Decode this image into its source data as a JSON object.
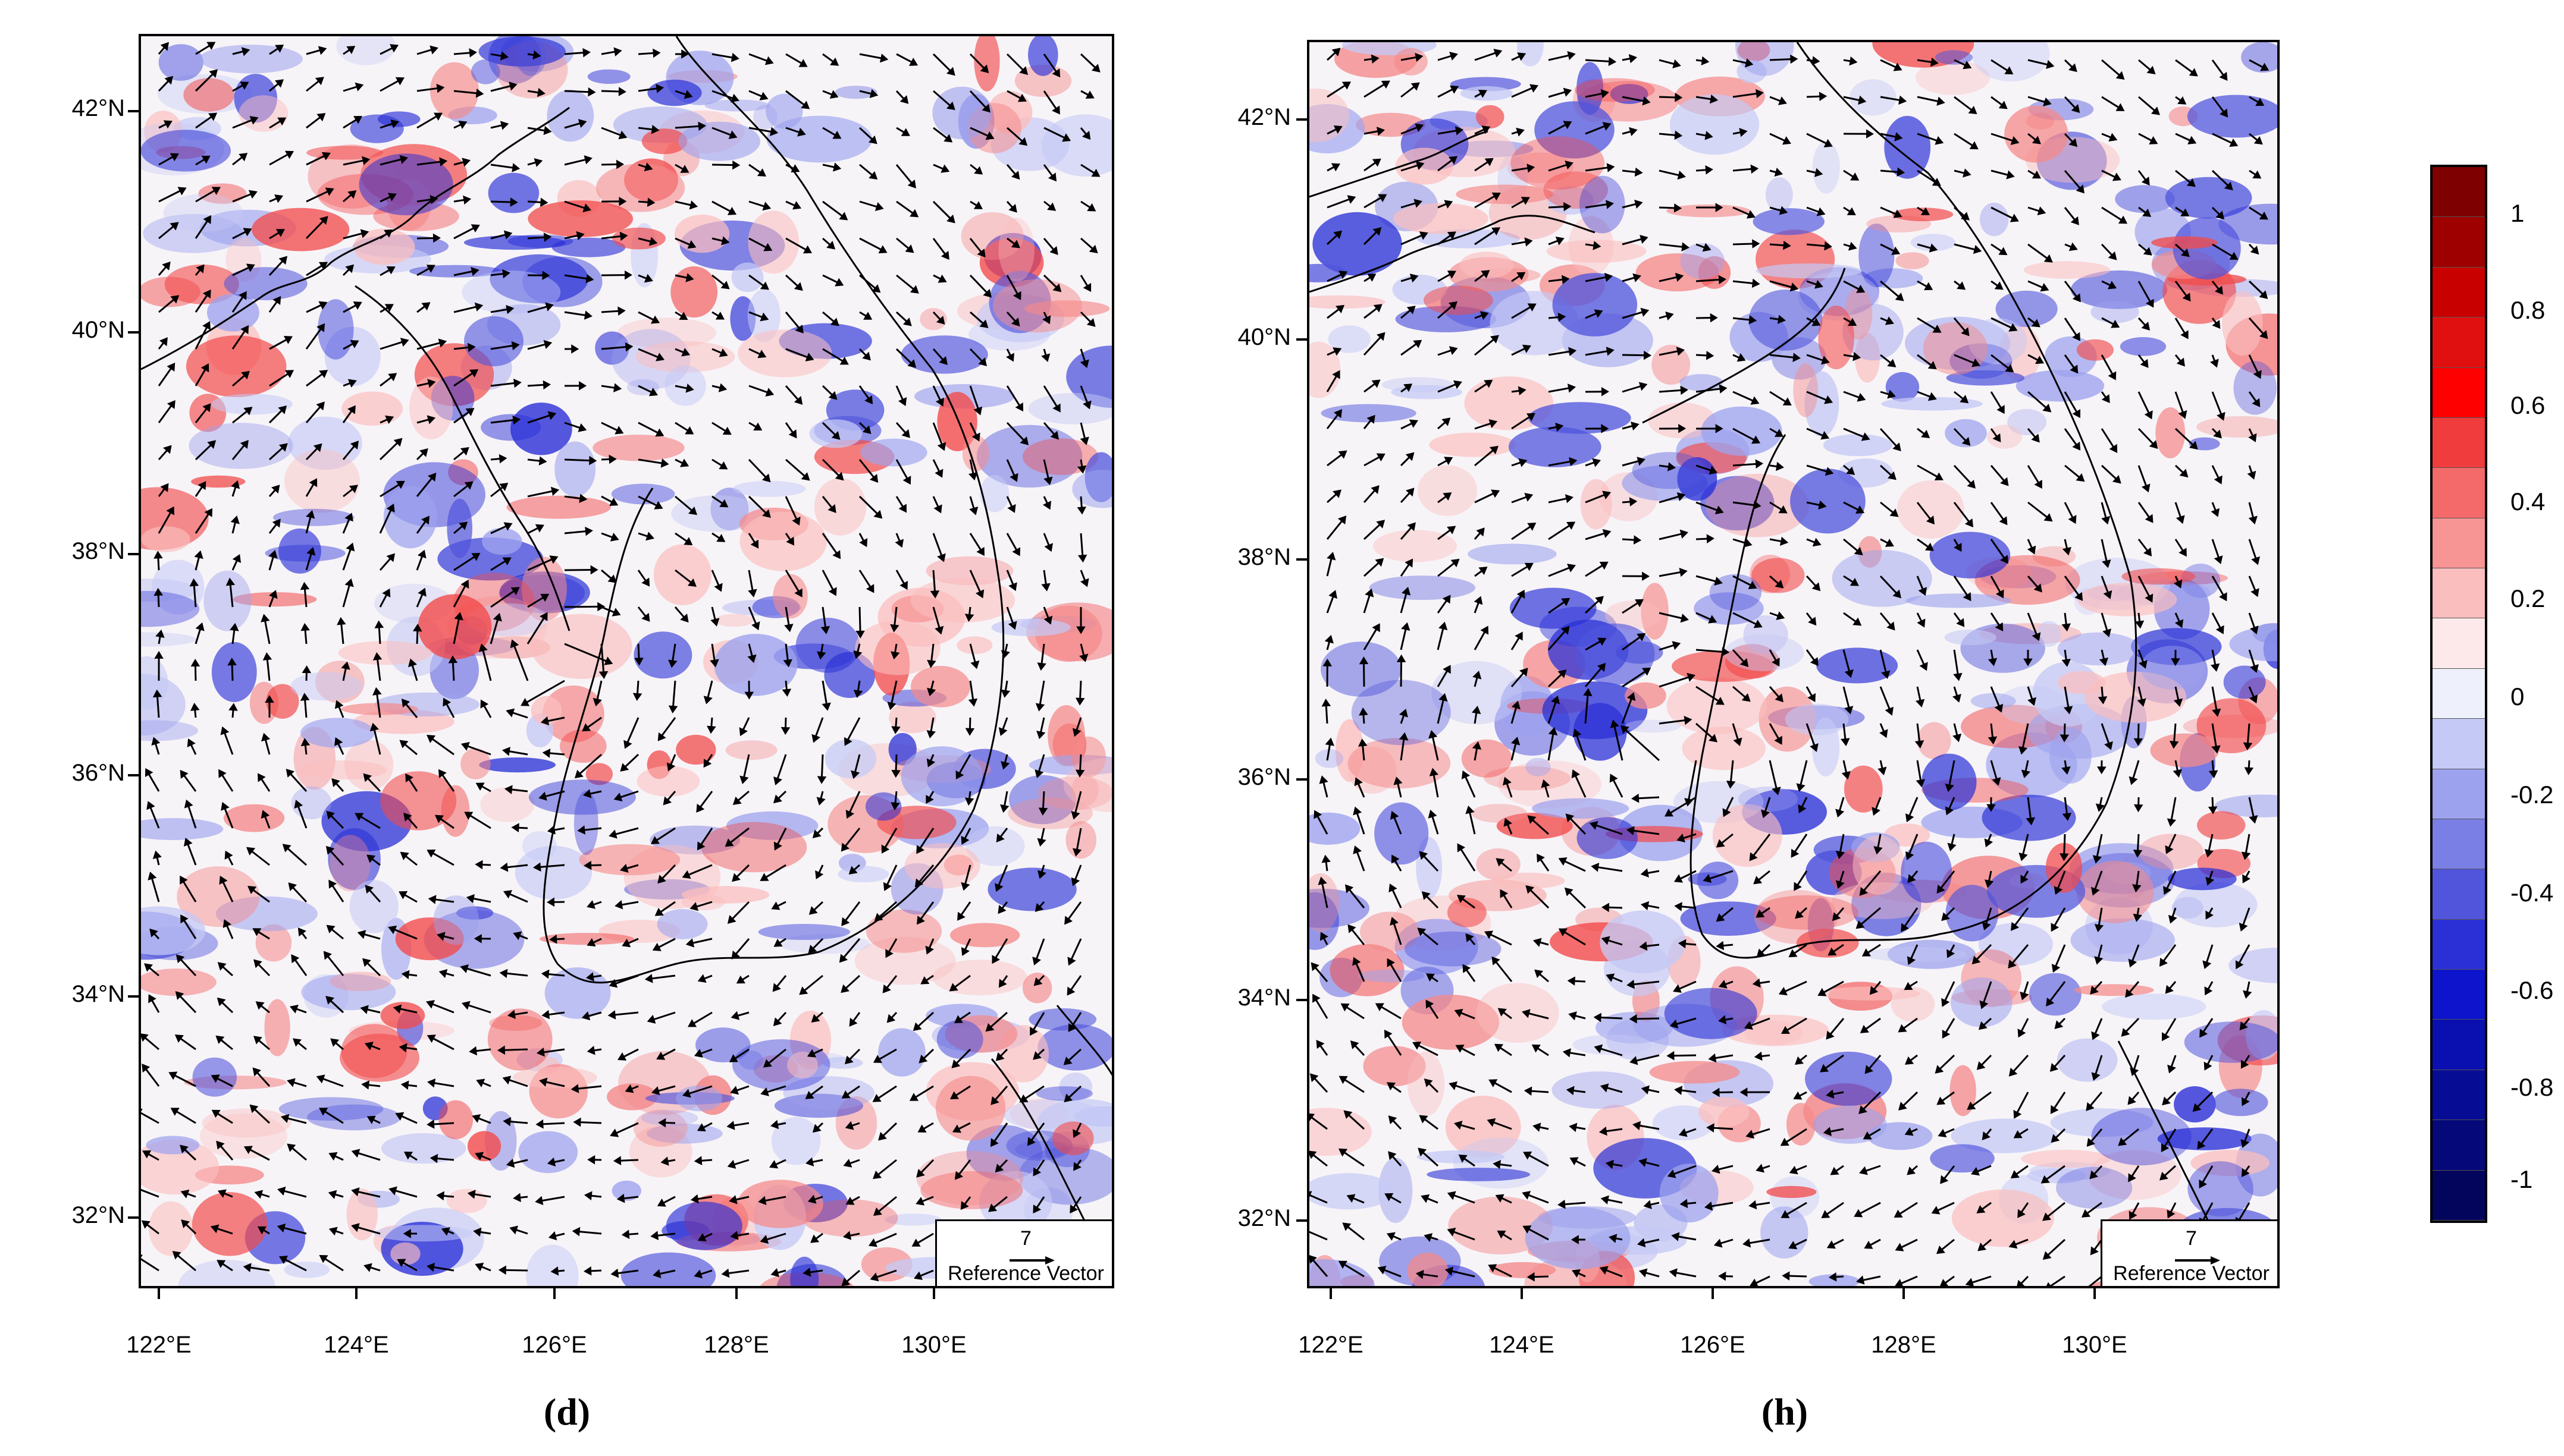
{
  "panels": [
    {
      "id": "d",
      "label": "(d)",
      "lat_labels": [
        "42°N",
        "40°N",
        "38°N",
        "36°N",
        "34°N",
        "32°N"
      ],
      "lon_labels": [
        "122°E",
        "124°E",
        "126°E",
        "128°E",
        "130°E"
      ],
      "reference_vector": {
        "value": "7",
        "label": "Reference Vector"
      }
    },
    {
      "id": "h",
      "label": "(h)",
      "lat_labels": [
        "42°N",
        "40°N",
        "38°N",
        "36°N",
        "34°N",
        "32°N"
      ],
      "lon_labels": [
        "122°E",
        "124°E",
        "126°E",
        "128°E",
        "130°E"
      ],
      "reference_vector": {
        "value": "7",
        "label": "Reference Vector"
      }
    }
  ],
  "colorbar": {
    "labels": [
      "1",
      "0.8",
      "0.6",
      "0.4",
      "0.2",
      "0",
      "-0.2",
      "-0.4",
      "-0.6",
      "-0.8",
      "-1"
    ],
    "colors": [
      "#7f0000",
      "#9e0000",
      "#c80000",
      "#e01010",
      "#ff0000",
      "#f03c3c",
      "#f46a6a",
      "#f79494",
      "#fbbebe",
      "#fde9e9",
      "#eef0fb",
      "#c5c9f5",
      "#9da2ee",
      "#7a7fe6",
      "#5055dc",
      "#2a30d6",
      "#0d14cc",
      "#0a10b0",
      "#070c95",
      "#050878",
      "#03055c"
    ]
  }
}
